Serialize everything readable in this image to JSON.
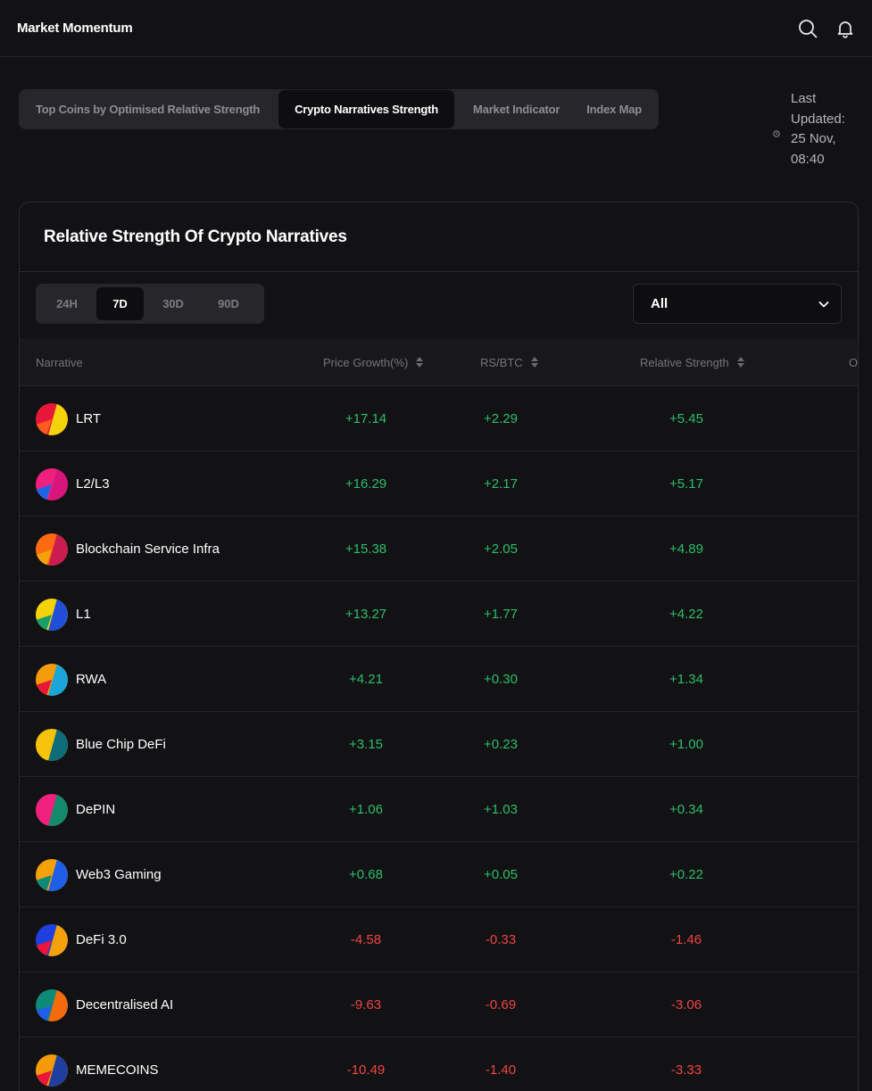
{
  "app": {
    "title": "Market Momentum"
  },
  "header": {
    "icons": [
      "search-icon",
      "bell-icon"
    ]
  },
  "tabs": [
    {
      "label": "Top Coins by Optimised Relative Strength",
      "active": false
    },
    {
      "label": "Crypto Narratives Strength",
      "active": true
    },
    {
      "label": "Market Indicator",
      "active": false
    },
    {
      "label": "Index Map",
      "active": false
    }
  ],
  "last_updated": {
    "line1": "Last",
    "line2": "Updated:",
    "line3": "25 Nov,",
    "line4": "08:40"
  },
  "card": {
    "title": "Relative Strength Of Crypto Narratives"
  },
  "periods": [
    {
      "label": "24H",
      "active": false
    },
    {
      "label": "7D",
      "active": true
    },
    {
      "label": "30D",
      "active": false
    },
    {
      "label": "90D",
      "active": false
    }
  ],
  "filter": {
    "selected": "All"
  },
  "table": {
    "columns": {
      "narrative": "Narrative",
      "price_growth": "Price Growth(%)",
      "rs_btc": "RS/BTC",
      "relative_strength": "Relative Strength",
      "overflow": "O"
    },
    "rows": [
      {
        "name": "LRT",
        "price_growth": "+17.14",
        "rs_btc": "+2.29",
        "relative_strength": "+5.45",
        "trend": "pos",
        "colors": [
          "#e8173a",
          "#f5d30a",
          "#ff5a1f"
        ]
      },
      {
        "name": "L2/L3",
        "price_growth": "+16.29",
        "rs_btc": "+2.17",
        "relative_strength": "+5.17",
        "trend": "pos",
        "colors": [
          "#f0207e",
          "#d8157a",
          "#1e63e8"
        ]
      },
      {
        "name": "Blockchain Service Infra",
        "price_growth": "+15.38",
        "rs_btc": "+2.05",
        "relative_strength": "+4.89",
        "trend": "pos",
        "colors": [
          "#ff6a12",
          "#c81d4e",
          "#f5a20a"
        ]
      },
      {
        "name": "L1",
        "price_growth": "+13.27",
        "rs_btc": "+1.77",
        "relative_strength": "+4.22",
        "trend": "pos",
        "colors": [
          "#f5d30a",
          "#1f4fd6",
          "#179e6a"
        ]
      },
      {
        "name": "RWA",
        "price_growth": "+4.21",
        "rs_btc": "+0.30",
        "relative_strength": "+1.34",
        "trend": "pos",
        "colors": [
          "#f59a0a",
          "#1aa6d8",
          "#e8173a"
        ]
      },
      {
        "name": "Blue Chip DeFi",
        "price_growth": "+3.15",
        "rs_btc": "+0.23",
        "relative_strength": "+1.00",
        "trend": "pos",
        "colors": [
          "#f5c40a",
          "#0e6b78",
          "#f5c40a"
        ]
      },
      {
        "name": "DePIN",
        "price_growth": "+1.06",
        "rs_btc": "+1.03",
        "relative_strength": "+0.34",
        "trend": "pos",
        "colors": [
          "#f0207e",
          "#138a6a",
          "#f0207e"
        ]
      },
      {
        "name": "Web3 Gaming",
        "price_growth": "+0.68",
        "rs_btc": "+0.05",
        "relative_strength": "+0.22",
        "trend": "pos",
        "colors": [
          "#f5a20a",
          "#1f5fe8",
          "#0e8a78"
        ]
      },
      {
        "name": "DeFi 3.0",
        "price_growth": "-4.58",
        "rs_btc": "-0.33",
        "relative_strength": "-1.46",
        "trend": "neg",
        "colors": [
          "#1f3fe0",
          "#f5a20a",
          "#e8173a"
        ]
      },
      {
        "name": "Decentralised AI",
        "price_growth": "-9.63",
        "rs_btc": "-0.69",
        "relative_strength": "-3.06",
        "trend": "neg",
        "colors": [
          "#0e8a78",
          "#f56a0a",
          "#1f5fe8"
        ]
      },
      {
        "name": "MEMECOINS",
        "price_growth": "-10.49",
        "rs_btc": "-1.40",
        "relative_strength": "-3.33",
        "trend": "neg",
        "colors": [
          "#f59a0a",
          "#1f3fa0",
          "#e8173a"
        ]
      }
    ]
  }
}
